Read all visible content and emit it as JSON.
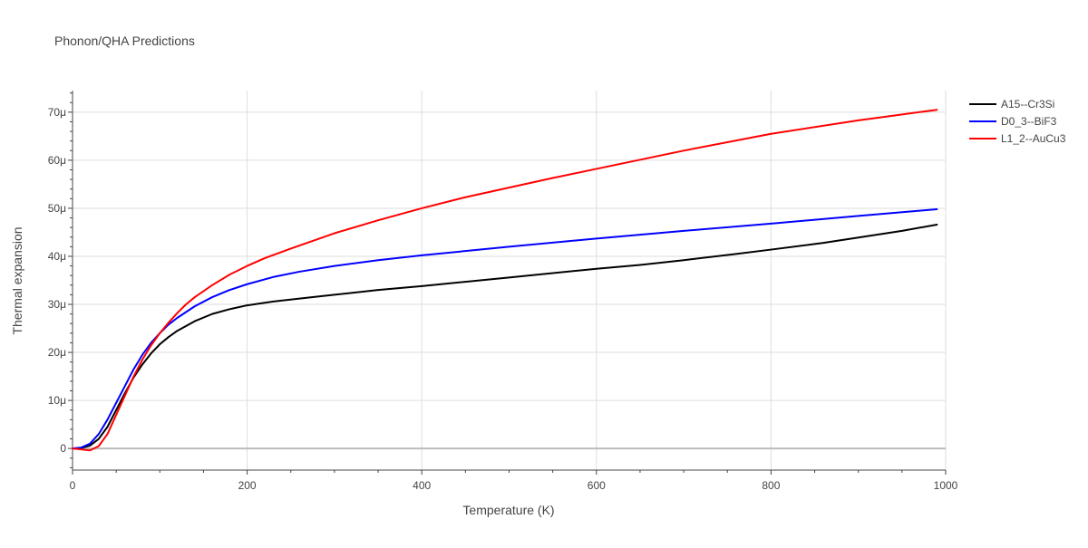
{
  "chart_data": {
    "type": "line",
    "title": "Phonon/QHA Predictions",
    "xlabel": "Temperature (K)",
    "ylabel": "Thermal expansion",
    "xlim": [
      0,
      1000
    ],
    "ylim": [
      -4.5,
      74.5
    ],
    "x_ticks": [
      0,
      200,
      400,
      600,
      800,
      1000
    ],
    "x_tick_labels": [
      "0",
      "200",
      "400",
      "600",
      "800",
      "1000"
    ],
    "y_ticks": [
      0,
      10,
      20,
      30,
      40,
      50,
      60,
      70
    ],
    "y_tick_labels": [
      "0",
      "10μ",
      "20μ",
      "30μ",
      "40μ",
      "50μ",
      "60μ",
      "70μ"
    ],
    "y_unit": "μ (×10⁻⁶)",
    "grid": true,
    "legend_position": "top-right",
    "series": [
      {
        "name": "A15--Cr3Si",
        "color": "#000000",
        "x": [
          0,
          10,
          20,
          30,
          40,
          50,
          60,
          70,
          80,
          90,
          100,
          110,
          120,
          140,
          160,
          180,
          200,
          230,
          260,
          300,
          350,
          400,
          500,
          600,
          650,
          700,
          760,
          800,
          860,
          900,
          950,
          990
        ],
        "y": [
          0,
          0.1,
          0.6,
          2.0,
          4.5,
          8.0,
          11.5,
          14.8,
          17.5,
          19.8,
          21.7,
          23.2,
          24.5,
          26.5,
          28.0,
          29.0,
          29.8,
          30.6,
          31.2,
          32.0,
          33.0,
          33.8,
          35.6,
          37.4,
          38.2,
          39.2,
          40.5,
          41.4,
          42.8,
          43.9,
          45.3,
          46.6
        ]
      },
      {
        "name": "D0_3--BiF3",
        "color": "#0000ff",
        "x": [
          0,
          10,
          20,
          30,
          40,
          50,
          60,
          70,
          80,
          90,
          100,
          110,
          120,
          140,
          160,
          180,
          200,
          230,
          260,
          300,
          350,
          400,
          500,
          600,
          700,
          800,
          900,
          990
        ],
        "y": [
          0,
          0.2,
          1.0,
          3.0,
          6.0,
          9.5,
          13.0,
          16.5,
          19.5,
          22.0,
          24.0,
          25.8,
          27.2,
          29.6,
          31.5,
          33.0,
          34.2,
          35.7,
          36.8,
          38.0,
          39.2,
          40.2,
          42.0,
          43.7,
          45.3,
          46.8,
          48.4,
          49.8
        ]
      },
      {
        "name": "L1_2--AuCu3",
        "color": "#ff0000",
        "x": [
          0,
          10,
          20,
          30,
          40,
          50,
          60,
          70,
          80,
          90,
          100,
          110,
          120,
          130,
          140,
          160,
          180,
          200,
          220,
          250,
          300,
          350,
          400,
          450,
          500,
          550,
          600,
          700,
          800,
          900,
          990
        ],
        "y": [
          0,
          -0.2,
          -0.4,
          0.5,
          3.0,
          7.0,
          11.0,
          15.0,
          18.5,
          21.5,
          24.0,
          26.2,
          28.2,
          30.0,
          31.5,
          34.0,
          36.2,
          38.0,
          39.6,
          41.6,
          44.8,
          47.5,
          50.0,
          52.3,
          54.3,
          56.3,
          58.2,
          62.0,
          65.5,
          68.3,
          70.5
        ]
      }
    ]
  }
}
